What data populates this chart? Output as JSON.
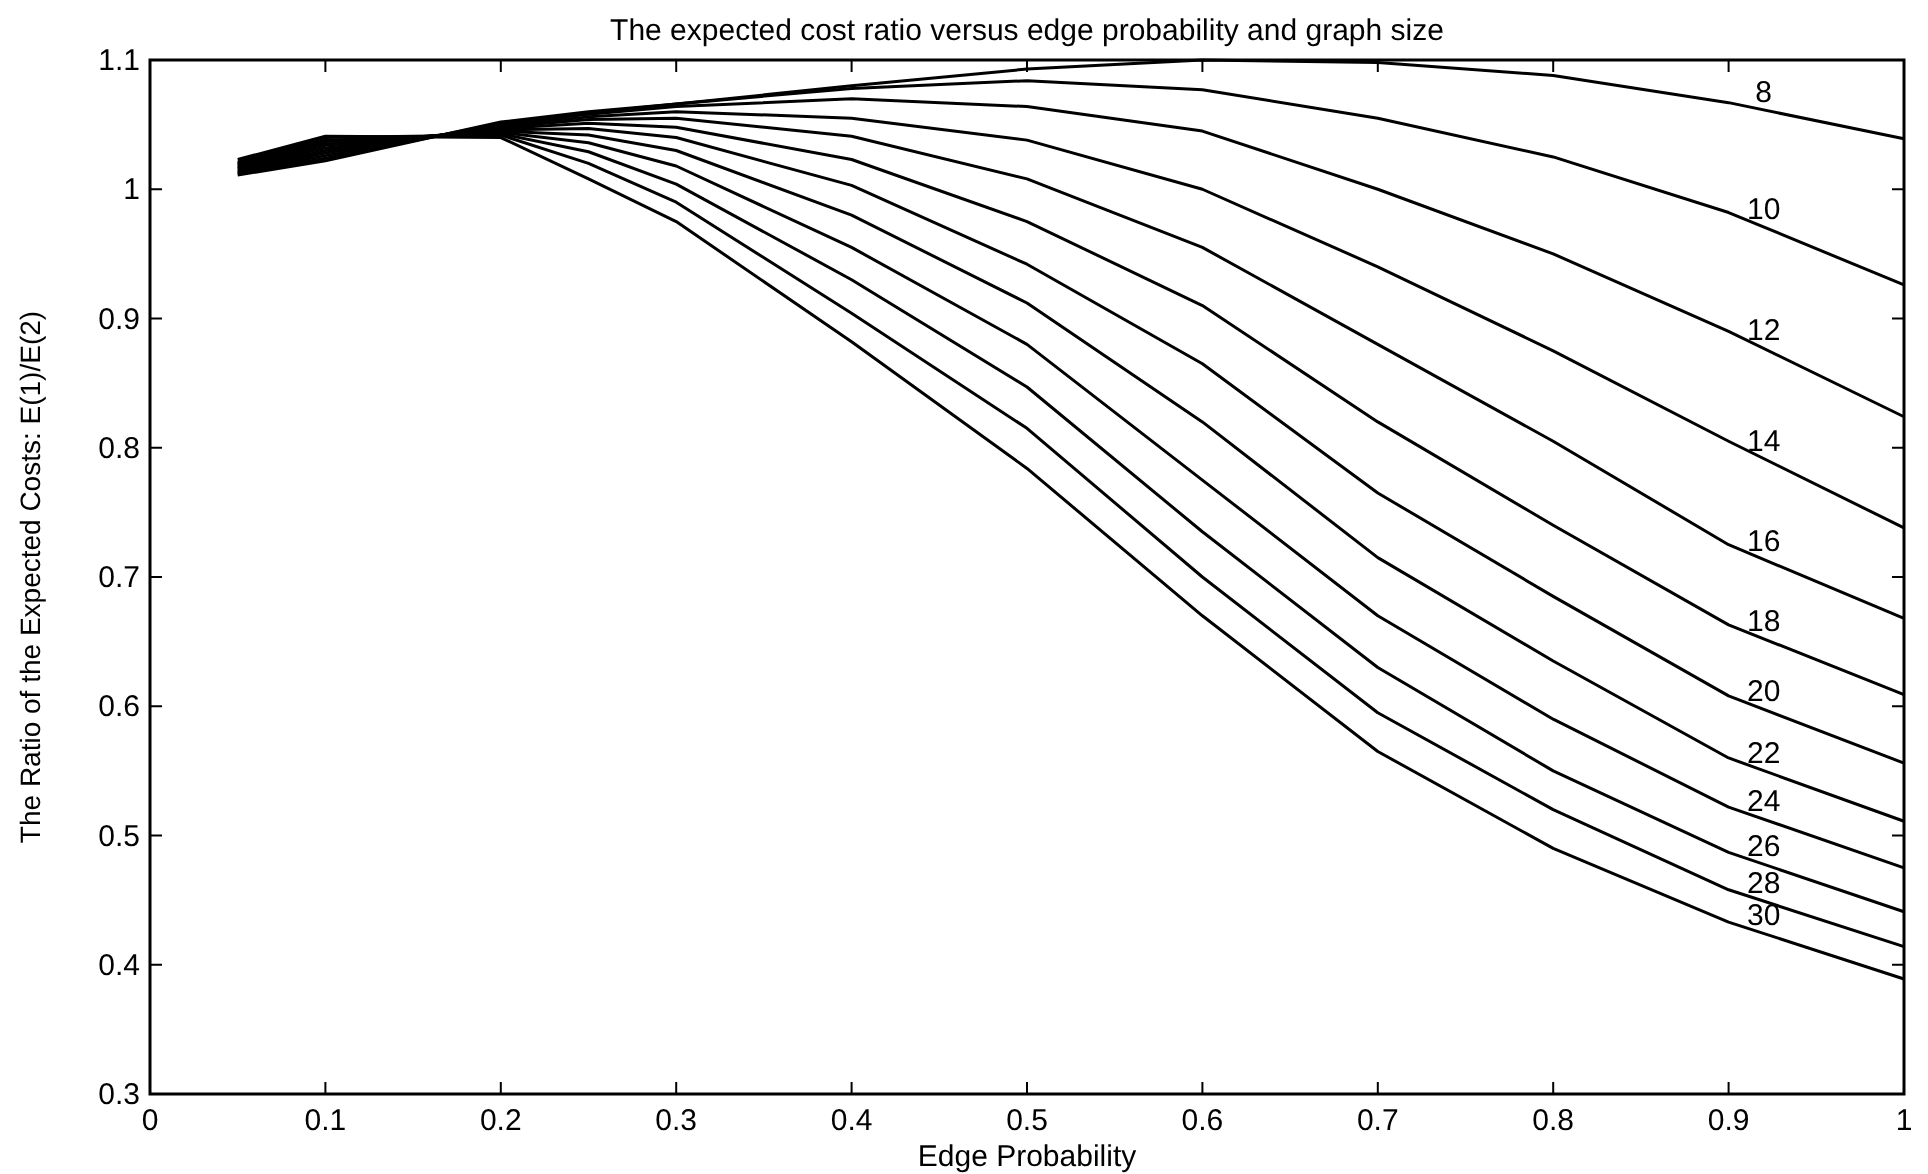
{
  "chart_data": {
    "type": "line",
    "title": "The expected cost ratio versus edge probability and graph size",
    "xlabel": "Edge Probability",
    "ylabel": "The Ratio of the Expected Costs: E(1)/E(2)",
    "x": [
      0.05,
      0.1,
      0.2,
      0.25,
      0.3,
      0.4,
      0.5,
      0.6,
      0.7,
      0.8,
      0.9,
      1.0
    ],
    "xlim": [
      0,
      1
    ],
    "ylim": [
      0.3,
      1.1
    ],
    "xticks": [
      0,
      0.1,
      0.2,
      0.3,
      0.4,
      0.5,
      0.6,
      0.7,
      0.8,
      0.9,
      1
    ],
    "yticks": [
      0.3,
      0.4,
      0.5,
      0.6,
      0.7,
      0.8,
      0.9,
      1,
      1.1
    ],
    "grid": false,
    "marker": "none",
    "line_style": "solid",
    "series": [
      {
        "name": "8",
        "color": "#000000",
        "values": [
          1.011,
          1.022,
          1.052,
          1.06,
          1.066,
          1.08,
          1.093,
          1.1,
          1.098,
          1.088,
          1.067,
          1.039
        ]
      },
      {
        "name": "10",
        "color": "#000000",
        "values": [
          1.012,
          1.024,
          1.051,
          1.059,
          1.066,
          1.078,
          1.084,
          1.077,
          1.055,
          1.025,
          0.982,
          0.926
        ]
      },
      {
        "name": "12",
        "color": "#000000",
        "values": [
          1.013,
          1.026,
          1.05,
          1.058,
          1.064,
          1.07,
          1.064,
          1.045,
          1.0,
          0.95,
          0.89,
          0.824
        ]
      },
      {
        "name": "14",
        "color": "#000000",
        "values": [
          1.014,
          1.028,
          1.049,
          1.056,
          1.06,
          1.055,
          1.038,
          1.0,
          0.94,
          0.875,
          0.805,
          0.738
        ]
      },
      {
        "name": "16",
        "color": "#000000",
        "values": [
          1.015,
          1.03,
          1.048,
          1.054,
          1.055,
          1.041,
          1.008,
          0.955,
          0.88,
          0.805,
          0.725,
          0.668
        ]
      },
      {
        "name": "18",
        "color": "#000000",
        "values": [
          1.016,
          1.032,
          1.047,
          1.051,
          1.048,
          1.023,
          0.975,
          0.91,
          0.82,
          0.74,
          0.663,
          0.609
        ]
      },
      {
        "name": "20",
        "color": "#000000",
        "values": [
          1.017,
          1.034,
          1.046,
          1.047,
          1.04,
          1.003,
          0.942,
          0.865,
          0.765,
          0.685,
          0.608,
          0.556
        ]
      },
      {
        "name": "22",
        "color": "#000000",
        "values": [
          1.018,
          1.035,
          1.045,
          1.042,
          1.03,
          0.98,
          0.912,
          0.82,
          0.715,
          0.635,
          0.56,
          0.511
        ]
      },
      {
        "name": "24",
        "color": "#000000",
        "values": [
          1.019,
          1.037,
          1.044,
          1.036,
          1.018,
          0.955,
          0.88,
          0.775,
          0.67,
          0.59,
          0.522,
          0.475
        ]
      },
      {
        "name": "26",
        "color": "#000000",
        "values": [
          1.02,
          1.038,
          1.043,
          1.029,
          1.004,
          0.93,
          0.847,
          0.735,
          0.63,
          0.55,
          0.487,
          0.441
        ]
      },
      {
        "name": "28",
        "color": "#000000",
        "values": [
          1.021,
          1.04,
          1.042,
          1.02,
          0.99,
          0.904,
          0.815,
          0.7,
          0.595,
          0.52,
          0.458,
          0.414
        ]
      },
      {
        "name": "30",
        "color": "#000000",
        "values": [
          1.023,
          1.041,
          1.04,
          1.008,
          0.975,
          0.882,
          0.784,
          0.67,
          0.565,
          0.49,
          0.433,
          0.389
        ]
      }
    ]
  }
}
